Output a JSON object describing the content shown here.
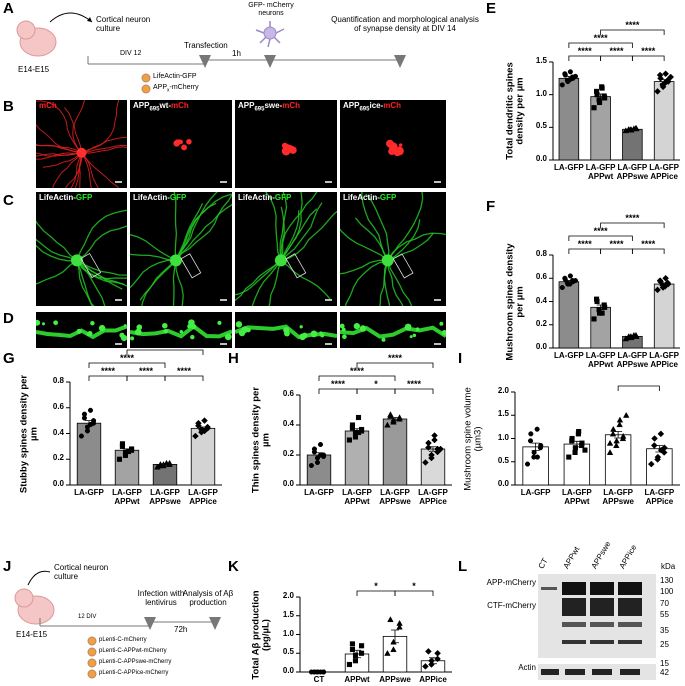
{
  "panels": {
    "letters": [
      "A",
      "B",
      "C",
      "D",
      "E",
      "F",
      "G",
      "H",
      "I",
      "J",
      "K",
      "L"
    ],
    "A": {
      "embryo": "E14-E15",
      "culture": "Cortical neuron culture",
      "div": "DIV 12",
      "transfection": "Transfection",
      "interval": "1h",
      "neurons": "GFP- mCherry neurons",
      "analysis": "Quantification and morphological analysis of synapse density at DIV 14",
      "plasmid_1": "LifeActin-GFP",
      "plasmid_2_main": "APP",
      "plasmid_2_sub": "x",
      "plasmid_2_rest": "-mCherry"
    },
    "B": {
      "labels": [
        {
          "tag": "mCh"
        },
        {
          "pre": "APP",
          "sub": "695",
          "mid": "wt-",
          "tag": "mCh"
        },
        {
          "pre": "APP",
          "sub": "695",
          "mid": "swe-",
          "tag": "mCh"
        },
        {
          "pre": "APP",
          "sub": "695",
          "mid": "ice-",
          "tag": "mCh"
        }
      ]
    },
    "C": {
      "labels": [
        {
          "pre": "LifeActin-",
          "tag": "GFP"
        },
        {
          "pre": "LifeActin-",
          "tag": "GFP"
        },
        {
          "pre": "LifeActin-",
          "tag": "GFP"
        },
        {
          "pre": "LifeActin-",
          "tag": "GFP"
        }
      ]
    },
    "J": {
      "embryo": "E14-E15",
      "culture": "Cortical neuron culture",
      "div": "12 DIV",
      "infection": "Infection with lentivirus",
      "interval": "72h",
      "analysis": "Analysis of Aβ production",
      "plasmids": [
        "pLenti-C-mCherry",
        "pLenti-C-APPwt-mCherry",
        "pLenti-C-APPswe-mCherry",
        "pLenti-C-APPice-mCherry"
      ]
    },
    "L": {
      "lanes": [
        "CT",
        "APPwt",
        "APPswe",
        "APPice"
      ],
      "unit": "kDa",
      "bands": [
        "APP-mCherry",
        "CTF-mCherry",
        "Actin"
      ],
      "markers": [
        130,
        100,
        70,
        55,
        35,
        25,
        15,
        42
      ]
    }
  },
  "chart_data": [
    {
      "type": "bar",
      "ylabel": "Total dendritic spines density per µm",
      "bold_label": true,
      "categories": [
        "LA-GFP",
        "LA-GFP APPwt",
        "LA-GFP APPswe",
        "LA-GFP APPice"
      ],
      "values": [
        1.25,
        0.97,
        0.47,
        1.2
      ],
      "errors": [
        0.03,
        0.04,
        0.01,
        0.03
      ],
      "points": [
        [
          1.15,
          1.2,
          1.22,
          1.25,
          1.27,
          1.3,
          1.32,
          1.35,
          1.23,
          1.28
        ],
        [
          0.8,
          0.88,
          0.92,
          0.95,
          0.98,
          1.0,
          1.05,
          1.1,
          1.12
        ],
        [
          0.45,
          0.46,
          0.47,
          0.48,
          0.49,
          0.47,
          0.46,
          0.48
        ],
        [
          1.05,
          1.12,
          1.15,
          1.2,
          1.22,
          1.25,
          1.3,
          1.32,
          1.18,
          1.27
        ]
      ],
      "colors": [
        "#8c8c8c",
        "#a3a3a3",
        "#737373",
        "#d4d4d4"
      ],
      "markers": [
        "circle",
        "square",
        "triangle",
        "diamond"
      ],
      "ylim": [
        0,
        1.5
      ],
      "yticks": [
        {
          "value": 0,
          "label": "0.0"
        },
        0.5,
        {
          "value": 1,
          "label": "1.0"
        },
        1.5
      ],
      "brackets": [
        {
          "pair": [
            0,
            1
          ],
          "label": "****"
        },
        {
          "pair": [
            1,
            2
          ],
          "label": "****"
        },
        {
          "pair": [
            2,
            3
          ],
          "label": "****"
        },
        {
          "pair": [
            0,
            2
          ],
          "label": "****"
        },
        {
          "pair": [
            1,
            3
          ],
          "label": "****"
        }
      ]
    },
    {
      "type": "bar",
      "ylabel": "Mushroom spines density per µm",
      "bold_label": true,
      "categories": [
        "LA-GFP",
        "LA-GFP APPwt",
        "LA-GFP APPswe",
        "LA-GFP APPice"
      ],
      "values": [
        0.57,
        0.35,
        0.1,
        0.55
      ],
      "errors": [
        0.01,
        0.02,
        0.005,
        0.01
      ],
      "points": [
        [
          0.52,
          0.55,
          0.56,
          0.57,
          0.58,
          0.59,
          0.6,
          0.62,
          0.55,
          0.58
        ],
        [
          0.25,
          0.3,
          0.33,
          0.35,
          0.37,
          0.4,
          0.42,
          0.3
        ],
        [
          0.08,
          0.09,
          0.1,
          0.1,
          0.11,
          0.1,
          0.09,
          0.11
        ],
        [
          0.5,
          0.52,
          0.54,
          0.55,
          0.56,
          0.57,
          0.58,
          0.6,
          0.53
        ]
      ],
      "colors": [
        "#8c8c8c",
        "#a3a3a3",
        "#737373",
        "#d4d4d4"
      ],
      "markers": [
        "circle",
        "square",
        "triangle",
        "diamond"
      ],
      "ylim": [
        0,
        0.8
      ],
      "yticks": [
        {
          "value": 0,
          "label": "0.0"
        },
        0.2,
        0.4,
        0.6,
        0.8
      ],
      "brackets": [
        {
          "pair": [
            0,
            1
          ],
          "label": "****"
        },
        {
          "pair": [
            1,
            2
          ],
          "label": "****"
        },
        {
          "pair": [
            2,
            3
          ],
          "label": "****"
        },
        {
          "pair": [
            0,
            2
          ],
          "label": "****"
        },
        {
          "pair": [
            1,
            3
          ],
          "label": "****"
        }
      ]
    },
    {
      "type": "bar",
      "ylabel": "Stubby spines density per µm",
      "bold_label": true,
      "categories": [
        "LA-GFP",
        "LA-GFP APPwt",
        "LA-GFP APPswe",
        "LA-GFP APPice"
      ],
      "values": [
        0.48,
        0.27,
        0.16,
        0.44
      ],
      "errors": [
        0.02,
        0.01,
        0.005,
        0.01
      ],
      "points": [
        [
          0.38,
          0.42,
          0.45,
          0.48,
          0.5,
          0.52,
          0.55,
          0.58,
          0.47
        ],
        [
          0.2,
          0.23,
          0.25,
          0.27,
          0.28,
          0.3,
          0.32,
          0.26
        ],
        [
          0.14,
          0.15,
          0.16,
          0.16,
          0.17,
          0.15,
          0.16,
          0.17
        ],
        [
          0.38,
          0.41,
          0.43,
          0.44,
          0.45,
          0.46,
          0.48,
          0.5,
          0.42
        ]
      ],
      "colors": [
        "#8c8c8c",
        "#a3a3a3",
        "#737373",
        "#d4d4d4"
      ],
      "markers": [
        "circle",
        "square",
        "triangle",
        "diamond"
      ],
      "ylim": [
        0,
        0.8
      ],
      "yticks": [
        {
          "value": 0,
          "label": "0.0"
        },
        0.2,
        0.4,
        0.6,
        0.8
      ],
      "brackets": [
        {
          "pair": [
            0,
            1
          ],
          "label": "****"
        },
        {
          "pair": [
            1,
            2
          ],
          "label": "****"
        },
        {
          "pair": [
            2,
            3
          ],
          "label": "****"
        },
        {
          "pair": [
            0,
            2
          ],
          "label": "****"
        },
        {
          "pair": [
            1,
            3
          ],
          "label": "****"
        }
      ]
    },
    {
      "type": "bar",
      "ylabel": "Thin spines density per µm",
      "bold_label": true,
      "categories": [
        "LA-GFP",
        "LA-GFP APPwt",
        "LA-GFP APPswe",
        "LA-GFP APPice"
      ],
      "values": [
        0.2,
        0.36,
        0.44,
        0.24
      ],
      "errors": [
        0.015,
        0.015,
        0.01,
        0.015
      ],
      "points": [
        [
          0.13,
          0.15,
          0.18,
          0.19,
          0.2,
          0.22,
          0.24,
          0.27,
          0.2
        ],
        [
          0.3,
          0.32,
          0.35,
          0.36,
          0.37,
          0.38,
          0.4,
          0.45,
          0.35
        ],
        [
          0.4,
          0.42,
          0.43,
          0.44,
          0.45,
          0.46,
          0.47
        ],
        [
          0.15,
          0.18,
          0.2,
          0.22,
          0.24,
          0.25,
          0.28,
          0.3,
          0.33,
          0.24
        ]
      ],
      "colors": [
        "#8c8c8c",
        "#b0b0b0",
        "#9a9a9a",
        "#d9d9d9"
      ],
      "markers": [
        "circle",
        "square",
        "triangle",
        "diamond"
      ],
      "ylim": [
        0,
        0.6
      ],
      "yticks": [
        {
          "value": 0,
          "label": "0.0"
        },
        0.2,
        0.4,
        0.6
      ],
      "brackets": [
        {
          "pair": [
            0,
            1
          ],
          "label": "****"
        },
        {
          "pair": [
            1,
            2
          ],
          "label": "*"
        },
        {
          "pair": [
            2,
            3
          ],
          "label": "****"
        },
        {
          "pair": [
            0,
            2
          ],
          "label": "****"
        },
        {
          "pair": [
            1,
            3
          ],
          "label": "****"
        }
      ]
    },
    {
      "type": "bar",
      "ylabel": "Mushroom spine volume (µm3)",
      "bold_label": false,
      "categories": [
        "LA-GFP",
        "LA-GFP APPwt",
        "LA-GFP APPswe",
        "LA-GFP APPice"
      ],
      "values": [
        0.82,
        0.88,
        1.08,
        0.78
      ],
      "errors": [
        0.08,
        0.06,
        0.07,
        0.07
      ],
      "points": [
        [
          0.45,
          0.6,
          0.7,
          0.8,
          0.85,
          0.95,
          1.1,
          1.2,
          0.6
        ],
        [
          0.6,
          0.7,
          0.8,
          0.85,
          0.9,
          0.95,
          1.0,
          1.1,
          1.15,
          0.75
        ],
        [
          0.7,
          0.85,
          0.95,
          1.0,
          1.05,
          1.1,
          1.2,
          1.3,
          1.4,
          1.5,
          0.9
        ],
        [
          0.45,
          0.55,
          0.6,
          0.7,
          0.8,
          0.85,
          1.0,
          1.1,
          0.75
        ]
      ],
      "colors": [
        "#ffffff",
        "#ffffff",
        "#ffffff",
        "#ffffff"
      ],
      "markers": [
        "circle",
        "square",
        "triangle",
        "diamond"
      ],
      "ylim": [
        0,
        2
      ],
      "yticks": [
        {
          "value": 0,
          "label": "0.0"
        },
        0.5,
        {
          "value": 1,
          "label": "1.0"
        },
        1.5,
        {
          "value": 2,
          "label": "2.0"
        }
      ],
      "brackets": [
        {
          "pair": [
            2,
            3
          ]
        }
      ]
    },
    {
      "type": "bar",
      "ylabel": "Total Aβ production (pg/µL)",
      "bold_label": true,
      "categories": [
        "CT",
        "APPwt",
        "APPswe",
        "APPice"
      ],
      "values": [
        0,
        0.48,
        0.95,
        0.3
      ],
      "errors": [
        0,
        0.1,
        0.17,
        0.08
      ],
      "points": [
        [
          0,
          0,
          0,
          0,
          0,
          0,
          0,
          0
        ],
        [
          0.2,
          0.3,
          0.45,
          0.5,
          0.7,
          0.75,
          0.6
        ],
        [
          0.5,
          0.6,
          0.8,
          1.2,
          1.3,
          1.4
        ],
        [
          0.15,
          0.2,
          0.3,
          0.35,
          0.5,
          0.55
        ]
      ],
      "colors": [
        "#ffffff",
        "#ffffff",
        "#ffffff",
        "#ffffff"
      ],
      "markers": [
        "circle",
        "square",
        "triangle",
        "diamond"
      ],
      "ylim": [
        0,
        2
      ],
      "yticks": [
        {
          "value": 0,
          "label": "0.0"
        },
        0.5,
        {
          "value": 1,
          "label": "1.0"
        },
        1.5,
        {
          "value": 2,
          "label": "2.0"
        }
      ],
      "brackets": [
        {
          "pair": [
            1,
            2
          ],
          "label": "*"
        },
        {
          "pair": [
            2,
            3
          ],
          "label": "*"
        }
      ]
    }
  ]
}
